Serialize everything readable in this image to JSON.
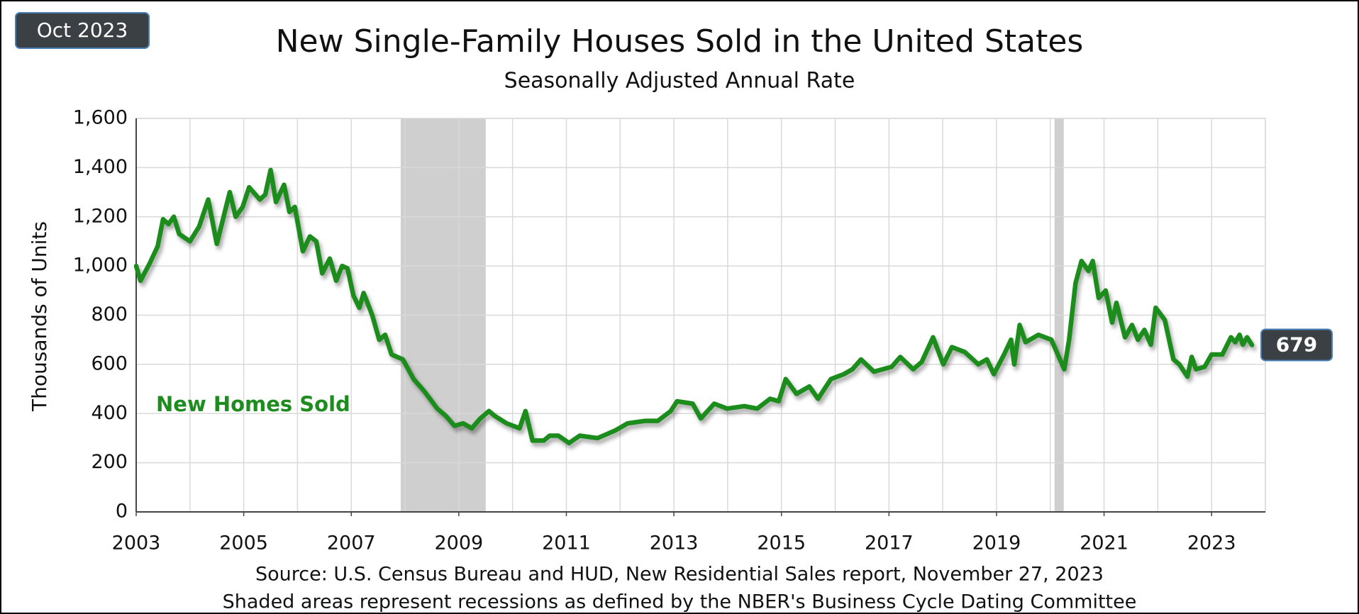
{
  "chart_data": {
    "type": "line",
    "date_badge": "Oct 2023",
    "title": "New Single-Family Houses Sold in the United States",
    "subtitle": "Seasonally Adjusted Annual Rate",
    "y_label": "Thousands of Units",
    "source": "Source:  U.S. Census Bureau and HUD, New Residential Sales report, November 27, 2023",
    "note": "Shaded areas represent recessions as defined by the NBER's Business Cycle Dating Committee",
    "xlim": [
      2003,
      2024
    ],
    "xticks": [
      2003,
      2005,
      2007,
      2009,
      2011,
      2013,
      2015,
      2017,
      2019,
      2021,
      2023
    ],
    "ylim": [
      0,
      1600
    ],
    "yticks": [
      0,
      200,
      400,
      600,
      800,
      {
        "value": 1000,
        "label": "1,000"
      },
      {
        "value": 1200,
        "label": "1,200"
      },
      {
        "value": 1400,
        "label": "1,400"
      },
      {
        "value": 1600,
        "label": "1,600"
      }
    ],
    "grid": true,
    "recessions": [
      [
        2007.92,
        2009.5
      ],
      [
        2020.08,
        2020.25
      ]
    ],
    "x": [
      2003.0,
      2003.08,
      2003.25,
      2003.4,
      2003.5,
      2003.6,
      2003.7,
      2003.8,
      2004.0,
      2004.17,
      2004.34,
      2004.5,
      2004.74,
      2004.85,
      2004.98,
      2005.1,
      2005.3,
      2005.4,
      2005.5,
      2005.6,
      2005.75,
      2005.85,
      2005.95,
      2006.1,
      2006.23,
      2006.35,
      2006.46,
      2006.6,
      2006.72,
      2006.83,
      2006.93,
      2007.04,
      2007.15,
      2007.23,
      2007.39,
      2007.52,
      2007.63,
      2007.75,
      2007.96,
      2008.16,
      2008.36,
      2008.6,
      2008.76,
      2008.92,
      2009.08,
      2009.24,
      2009.4,
      2009.56,
      2009.67,
      2009.89,
      2010.13,
      2010.24,
      2010.37,
      2010.58,
      2010.69,
      2010.85,
      2011.05,
      2011.25,
      2011.58,
      2011.9,
      2012.14,
      2012.46,
      2012.7,
      2012.94,
      2013.06,
      2013.35,
      2013.5,
      2013.75,
      2013.99,
      2014.31,
      2014.55,
      2014.79,
      2014.95,
      2015.08,
      2015.28,
      2015.52,
      2015.68,
      2015.92,
      2016.16,
      2016.32,
      2016.48,
      2016.72,
      2017.05,
      2017.21,
      2017.45,
      2017.61,
      2017.82,
      2018.01,
      2018.17,
      2018.41,
      2018.66,
      2018.82,
      2018.95,
      2019.14,
      2019.27,
      2019.33,
      2019.43,
      2019.54,
      2019.78,
      2020.02,
      2020.18,
      2020.26,
      2020.35,
      2020.47,
      2020.58,
      2020.71,
      2020.79,
      2020.9,
      2021.03,
      2021.15,
      2021.23,
      2021.39,
      2021.52,
      2021.63,
      2021.75,
      2021.87,
      2021.96,
      2022.13,
      2022.29,
      2022.4,
      2022.55,
      2022.63,
      2022.71,
      2022.87,
      2023.0,
      2023.2,
      2023.36,
      2023.44,
      2023.52,
      2023.58,
      2023.66,
      2023.75
    ],
    "series": [
      {
        "name": "New Homes Sold",
        "color": "#1e8c1e",
        "values": [
          1000,
          940,
          1010,
          1080,
          1190,
          1170,
          1200,
          1130,
          1100,
          1160,
          1270,
          1090,
          1300,
          1200,
          1240,
          1320,
          1270,
          1290,
          1390,
          1260,
          1330,
          1220,
          1240,
          1060,
          1120,
          1100,
          970,
          1030,
          940,
          1000,
          990,
          880,
          830,
          890,
          800,
          700,
          720,
          640,
          620,
          540,
          490,
          420,
          390,
          350,
          360,
          340,
          380,
          410,
          390,
          360,
          340,
          410,
          290,
          290,
          310,
          310,
          280,
          310,
          300,
          330,
          360,
          370,
          370,
          410,
          450,
          440,
          380,
          440,
          420,
          430,
          420,
          460,
          450,
          540,
          480,
          510,
          460,
          540,
          560,
          580,
          620,
          570,
          590,
          630,
          580,
          610,
          710,
          600,
          670,
          650,
          600,
          620,
          560,
          640,
          700,
          600,
          760,
          690,
          720,
          700,
          620,
          580,
          700,
          930,
          1020,
          980,
          1020,
          870,
          900,
          770,
          850,
          710,
          760,
          700,
          740,
          680,
          830,
          780,
          620,
          600,
          550,
          630,
          580,
          590,
          640,
          640,
          710,
          690,
          720,
          680,
          710,
          679
        ]
      }
    ]
  }
}
